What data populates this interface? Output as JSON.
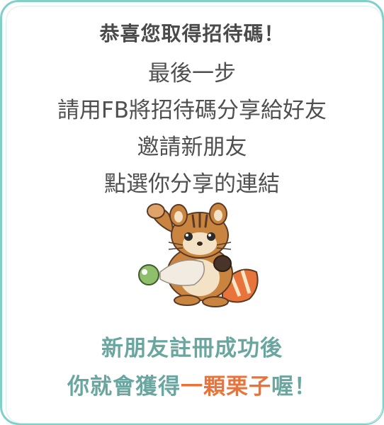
{
  "title": "恭喜您取得招待碼！",
  "steps": [
    "最後一步",
    "請用FB將招待碼分享給好友",
    "邀請新朋友",
    "點選你分享的連結"
  ],
  "mascot_icon": "squirrel-holding-ball-icon",
  "reward": {
    "line1": "新朋友註冊成功後",
    "line2_before": "你就會獲得",
    "line2_highlight": "一顆栗子",
    "line2_after": "喔！"
  },
  "colors": {
    "border": "#7fd0c8",
    "reward_text": "#6aa6a0",
    "highlight": "#e8743b",
    "body_text": "#4f4f4f"
  }
}
